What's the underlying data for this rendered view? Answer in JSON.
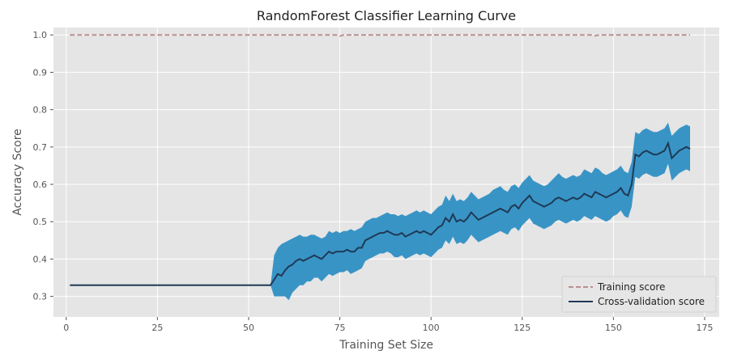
{
  "chart_data": {
    "type": "line",
    "title": "RandomForest Classifier Learning Curve",
    "xlabel": "Training Set Size",
    "ylabel": "Accuracy Score",
    "xlim": [
      -3.5,
      179
    ],
    "ylim": [
      0.245,
      1.02
    ],
    "xticks": [
      0,
      25,
      50,
      75,
      100,
      125,
      150,
      175
    ],
    "yticks": [
      0.3,
      0.4,
      0.5,
      0.6,
      0.7,
      0.8,
      0.9,
      1.0
    ],
    "xtick_labels": [
      "0",
      "25",
      "50",
      "75",
      "100",
      "125",
      "150",
      "175"
    ],
    "ytick_labels": [
      "0.3",
      "0.4",
      "0.5",
      "0.6",
      "0.7",
      "0.8",
      "0.9",
      "1.0"
    ],
    "grid": true,
    "legend_position": "bottom-right",
    "colors": {
      "background": "#e5e5e5",
      "grid": "#ffffff",
      "training": "#bc8f8f",
      "cv_line": "#1f3a55",
      "cv_band": "#2f8fc4"
    },
    "x": [
      1,
      56,
      57,
      58,
      59,
      60,
      61,
      62,
      63,
      64,
      65,
      66,
      67,
      68,
      69,
      70,
      71,
      72,
      73,
      74,
      75,
      76,
      77,
      78,
      79,
      80,
      81,
      82,
      83,
      84,
      85,
      86,
      87,
      88,
      89,
      90,
      91,
      92,
      93,
      94,
      95,
      96,
      97,
      98,
      99,
      100,
      101,
      102,
      103,
      104,
      105,
      106,
      107,
      108,
      109,
      110,
      111,
      112,
      113,
      114,
      115,
      116,
      117,
      118,
      119,
      120,
      121,
      122,
      123,
      124,
      125,
      126,
      127,
      128,
      129,
      130,
      131,
      132,
      133,
      134,
      135,
      136,
      137,
      138,
      139,
      140,
      141,
      142,
      143,
      144,
      145,
      146,
      147,
      148,
      149,
      150,
      151,
      152,
      153,
      154,
      155,
      156,
      157,
      158,
      159,
      160,
      161,
      162,
      163,
      164,
      165,
      166,
      167,
      168,
      169,
      170,
      171
    ],
    "series": [
      {
        "name": "Training score",
        "style": "dashed",
        "values": [
          1,
          1,
          1,
          1,
          1,
          1,
          1,
          1,
          1,
          1,
          1,
          1,
          1,
          1,
          1,
          1,
          1,
          1,
          1,
          1,
          0.997,
          1,
          1,
          1,
          1,
          1,
          1,
          1,
          1,
          1,
          1,
          1,
          1,
          1,
          1,
          1,
          1,
          1,
          1,
          1,
          1,
          1,
          1,
          1,
          1,
          1,
          1,
          1,
          1,
          1,
          1,
          1,
          1,
          1,
          1,
          1,
          1,
          1,
          1,
          1,
          1,
          1,
          1,
          1,
          1,
          1,
          1,
          1,
          1,
          1,
          1,
          1,
          1,
          1,
          1,
          1,
          1,
          1,
          1,
          1,
          1,
          1,
          1,
          1,
          1,
          1,
          1,
          1,
          1,
          1,
          0.998,
          1,
          1,
          1,
          1,
          1,
          1,
          1,
          1,
          1,
          1,
          1,
          1,
          1,
          1,
          1,
          1,
          1,
          1,
          1,
          1,
          1,
          1,
          1,
          1,
          1,
          1
        ]
      },
      {
        "name": "Cross-validation score",
        "style": "solid",
        "values": [
          0.33,
          0.33,
          0.345,
          0.36,
          0.355,
          0.37,
          0.38,
          0.385,
          0.395,
          0.4,
          0.395,
          0.4,
          0.405,
          0.41,
          0.405,
          0.4,
          0.41,
          0.42,
          0.415,
          0.42,
          0.42,
          0.42,
          0.425,
          0.42,
          0.42,
          0.43,
          0.43,
          0.45,
          0.455,
          0.46,
          0.465,
          0.47,
          0.47,
          0.475,
          0.47,
          0.465,
          0.465,
          0.47,
          0.46,
          0.465,
          0.47,
          0.475,
          0.47,
          0.475,
          0.47,
          0.465,
          0.475,
          0.485,
          0.49,
          0.51,
          0.5,
          0.52,
          0.5,
          0.505,
          0.5,
          0.51,
          0.525,
          0.515,
          0.505,
          0.51,
          0.515,
          0.52,
          0.525,
          0.53,
          0.535,
          0.53,
          0.525,
          0.54,
          0.545,
          0.535,
          0.55,
          0.56,
          0.57,
          0.555,
          0.55,
          0.545,
          0.54,
          0.545,
          0.55,
          0.56,
          0.565,
          0.56,
          0.555,
          0.56,
          0.565,
          0.56,
          0.565,
          0.575,
          0.57,
          0.565,
          0.58,
          0.575,
          0.57,
          0.565,
          0.57,
          0.575,
          0.58,
          0.59,
          0.575,
          0.57,
          0.6,
          0.68,
          0.675,
          0.685,
          0.69,
          0.685,
          0.68,
          0.68,
          0.685,
          0.69,
          0.71,
          0.67,
          0.68,
          0.69,
          0.695,
          0.7,
          0.695
        ]
      }
    ],
    "cv_band": {
      "upper": [
        0.33,
        0.33,
        0.41,
        0.43,
        0.44,
        0.445,
        0.45,
        0.455,
        0.46,
        0.465,
        0.46,
        0.46,
        0.465,
        0.465,
        0.46,
        0.455,
        0.46,
        0.475,
        0.47,
        0.475,
        0.47,
        0.475,
        0.475,
        0.48,
        0.475,
        0.48,
        0.485,
        0.5,
        0.505,
        0.51,
        0.51,
        0.515,
        0.52,
        0.525,
        0.52,
        0.52,
        0.515,
        0.52,
        0.515,
        0.52,
        0.525,
        0.53,
        0.525,
        0.53,
        0.525,
        0.52,
        0.53,
        0.54,
        0.545,
        0.57,
        0.555,
        0.575,
        0.555,
        0.56,
        0.555,
        0.565,
        0.58,
        0.57,
        0.56,
        0.565,
        0.57,
        0.575,
        0.585,
        0.59,
        0.595,
        0.585,
        0.58,
        0.595,
        0.6,
        0.59,
        0.605,
        0.615,
        0.625,
        0.61,
        0.605,
        0.6,
        0.595,
        0.6,
        0.61,
        0.62,
        0.63,
        0.62,
        0.615,
        0.62,
        0.625,
        0.62,
        0.625,
        0.64,
        0.635,
        0.63,
        0.645,
        0.64,
        0.63,
        0.625,
        0.63,
        0.635,
        0.64,
        0.65,
        0.635,
        0.63,
        0.66,
        0.74,
        0.735,
        0.745,
        0.75,
        0.745,
        0.74,
        0.74,
        0.745,
        0.75,
        0.765,
        0.73,
        0.74,
        0.75,
        0.755,
        0.76,
        0.755
      ],
      "lower": [
        0.33,
        0.33,
        0.3,
        0.3,
        0.3,
        0.3,
        0.29,
        0.31,
        0.32,
        0.33,
        0.33,
        0.34,
        0.34,
        0.35,
        0.35,
        0.34,
        0.35,
        0.36,
        0.355,
        0.36,
        0.365,
        0.365,
        0.37,
        0.36,
        0.365,
        0.37,
        0.375,
        0.395,
        0.4,
        0.405,
        0.41,
        0.415,
        0.415,
        0.42,
        0.415,
        0.405,
        0.405,
        0.41,
        0.4,
        0.405,
        0.41,
        0.415,
        0.41,
        0.415,
        0.41,
        0.405,
        0.415,
        0.425,
        0.43,
        0.45,
        0.44,
        0.46,
        0.44,
        0.445,
        0.44,
        0.45,
        0.465,
        0.455,
        0.445,
        0.45,
        0.455,
        0.46,
        0.465,
        0.47,
        0.475,
        0.47,
        0.465,
        0.48,
        0.485,
        0.475,
        0.49,
        0.5,
        0.51,
        0.495,
        0.49,
        0.485,
        0.48,
        0.485,
        0.49,
        0.5,
        0.505,
        0.5,
        0.495,
        0.5,
        0.505,
        0.5,
        0.505,
        0.515,
        0.51,
        0.505,
        0.515,
        0.51,
        0.505,
        0.5,
        0.505,
        0.515,
        0.52,
        0.53,
        0.515,
        0.51,
        0.54,
        0.62,
        0.615,
        0.625,
        0.63,
        0.625,
        0.62,
        0.62,
        0.625,
        0.63,
        0.655,
        0.61,
        0.62,
        0.63,
        0.635,
        0.64,
        0.635
      ]
    }
  }
}
